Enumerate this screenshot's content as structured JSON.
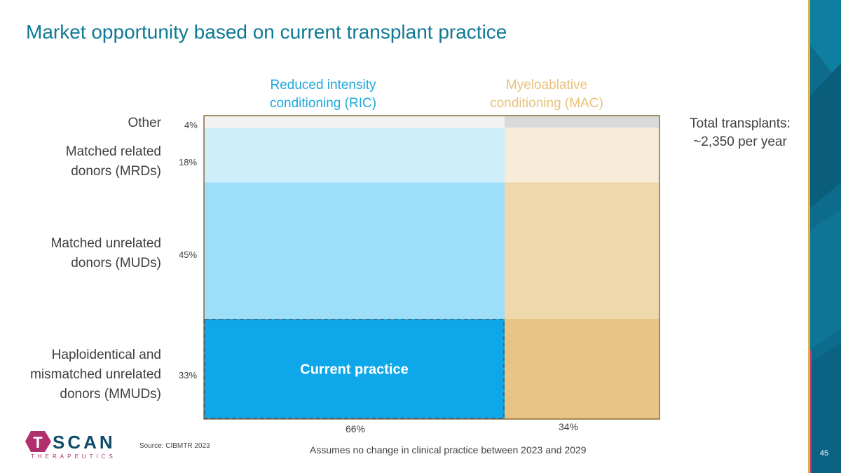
{
  "title": "Market opportunity based on current transplant practice",
  "page_number": "45",
  "source": "Source: CIBMTR 2023",
  "footnote": "Assumes no change in clinical practice between 2023 and 2029",
  "total_label": "Total transplants:",
  "total_value": "~2,350 per year",
  "logo": {
    "letter": "T",
    "name": "SCAN",
    "tagline": "THERAPEUTICS"
  },
  "colors": {
    "title": "#0f7a94",
    "ric_header": "#1ea7dc",
    "mac_header": "#e8c27a",
    "chart_border": "#8b6a38",
    "highlight_border": "#4a5a6a",
    "logo_accent": "#b0306e",
    "logo_text": "#0f4c6a"
  },
  "chart_data": {
    "type": "marimekko",
    "columns": [
      {
        "header_line1": "Reduced intensity",
        "header_line2": "conditioning (RIC)",
        "share": 66,
        "share_label": "66%",
        "segment_colors": [
          "#f2f2f2",
          "#cfeefb",
          "#9ddff9",
          "#0ea8ea"
        ]
      },
      {
        "header_line1": "Myeloablative",
        "header_line2": "conditioning (MAC)",
        "share": 34,
        "share_label": "34%",
        "segment_colors": [
          "#d9d9d9",
          "#f7ecd8",
          "#efd8ac",
          "#e6c484"
        ]
      }
    ],
    "rows": [
      {
        "label_lines": [
          "Other"
        ],
        "share": 4,
        "share_label": "4%"
      },
      {
        "label_lines": [
          "Matched related",
          "donors (MRDs)"
        ],
        "share": 18,
        "share_label": "18%"
      },
      {
        "label_lines": [
          "Matched unrelated",
          "donors (MUDs)"
        ],
        "share": 45,
        "share_label": "45%"
      },
      {
        "label_lines": [
          "Haploidentical and",
          "mismatched unrelated",
          "donors (MMUDs)"
        ],
        "share": 33,
        "share_label": "33%"
      }
    ],
    "highlight": {
      "label": "Current practice",
      "column": 0,
      "row": 3
    }
  }
}
